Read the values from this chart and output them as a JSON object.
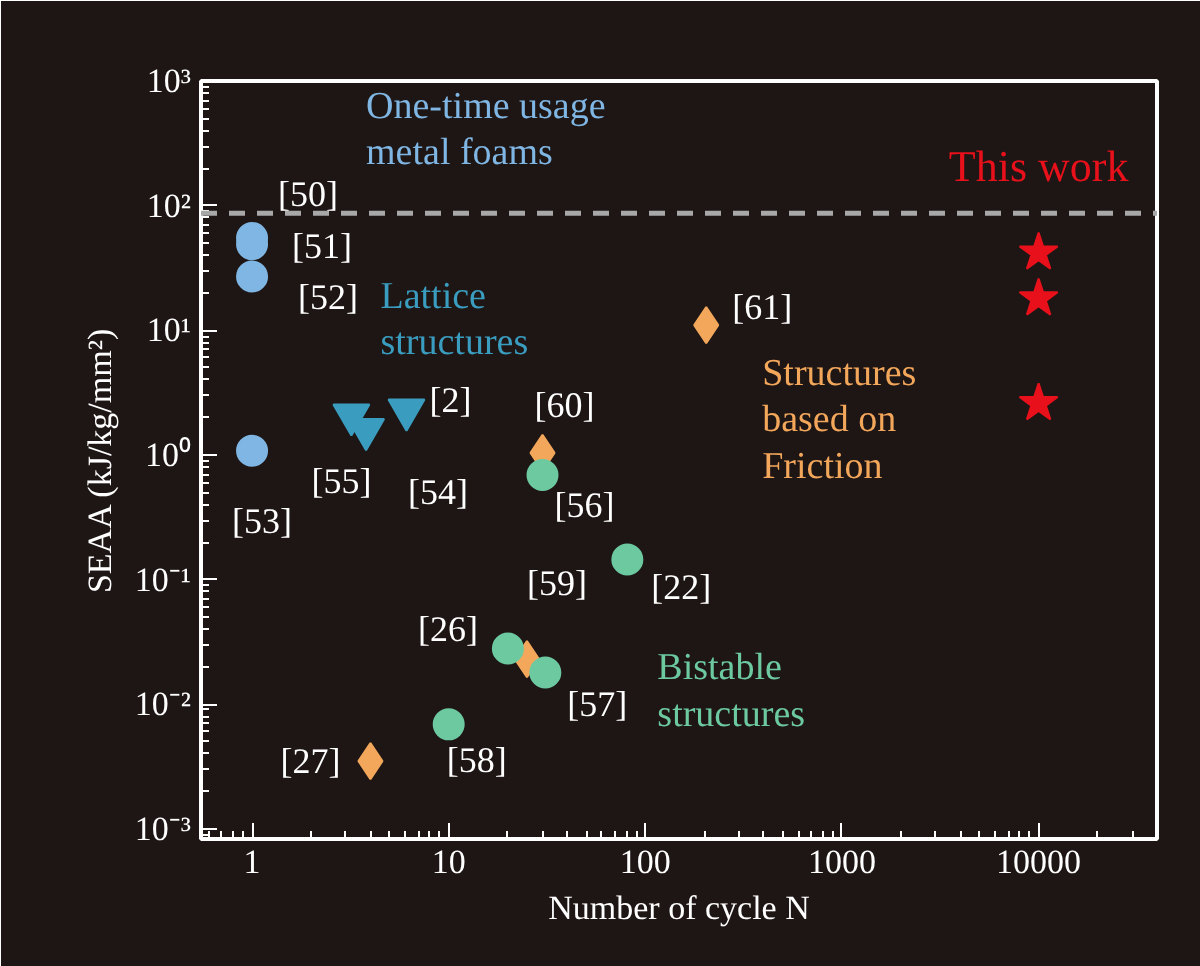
{
  "chart_data": {
    "type": "scatter",
    "xlabel": "Number of cycle N",
    "ylabel": "SEAA (kJ/kg/mm²)",
    "log": "xy",
    "xlim": [
      0.55,
      40000
    ],
    "ylim": [
      0.00083,
      1000
    ],
    "xticks": [
      1,
      10,
      100,
      1000,
      10000
    ],
    "yticks": [
      {
        "value": 0.001,
        "label": "10⁻³"
      },
      {
        "value": 0.01,
        "label": "10⁻²"
      },
      {
        "value": 0.1,
        "label": "10⁻¹"
      },
      {
        "value": 1,
        "label": "10⁰"
      },
      {
        "value": 10,
        "label": "10¹"
      },
      {
        "value": 100,
        "label": "10²"
      },
      {
        "value": 1000,
        "label": "10³"
      }
    ],
    "grid": false,
    "series": [
      {
        "name": "One-time usage\nmetal foams",
        "color": "#7fb6e3",
        "marker": "circle",
        "x": [
          1,
          1,
          1,
          1
        ],
        "values": [
          55,
          49,
          27,
          1.08
        ]
      },
      {
        "name": "Lattice\nstructures",
        "color": "#3a9dc0",
        "marker": "triangle",
        "x": [
          3.2,
          3.8,
          6.1
        ],
        "values": [
          2.1,
          1.6,
          2.3
        ]
      },
      {
        "name": "Structures\nbased on\nFriction",
        "color": "#f3a75b",
        "marker": "diamond",
        "x": [
          30,
          25,
          4,
          204
        ],
        "values": [
          1.04,
          0.023,
          0.0035,
          11
        ]
      },
      {
        "name": "Bistable\nstructures",
        "color": "#6cc9a0",
        "marker": "circle",
        "x": [
          30,
          81,
          20,
          31,
          10
        ],
        "values": [
          0.69,
          0.145,
          0.028,
          0.018,
          0.0069
        ]
      },
      {
        "name": "This work",
        "color": "#e8101a",
        "marker": "star",
        "x": [
          10000,
          10000,
          10000
        ],
        "values": [
          42,
          18,
          2.6
        ]
      }
    ],
    "ref_lines": [
      {
        "axis": "y",
        "value": 87,
        "color": "#a8a8a8",
        "line_style": "dashed"
      }
    ],
    "annotations": [
      {
        "text": "[50]",
        "x": 1,
        "y": 55
      },
      {
        "text": "[51]",
        "x": 1,
        "y": 49
      },
      {
        "text": "[52]",
        "x": 1,
        "y": 27
      },
      {
        "text": "[53]",
        "x": 1,
        "y": 1.08
      },
      {
        "text": "[55]",
        "x": 3.2,
        "y": 2.1
      },
      {
        "text": "[54]",
        "x": 3.8,
        "y": 1.6
      },
      {
        "text": "[2]",
        "x": 6.1,
        "y": 2.3
      },
      {
        "text": "[60]",
        "x": 30,
        "y": 1.04
      },
      {
        "text": "[59]",
        "x": 25,
        "y": 0.023
      },
      {
        "text": "[27]",
        "x": 4,
        "y": 0.0035
      },
      {
        "text": "[61]",
        "x": 204,
        "y": 11
      },
      {
        "text": "[56]",
        "x": 30,
        "y": 0.69
      },
      {
        "text": "[22]",
        "x": 81,
        "y": 0.145
      },
      {
        "text": "[26]",
        "x": 20,
        "y": 0.028
      },
      {
        "text": "[57]",
        "x": 31,
        "y": 0.018
      },
      {
        "text": "[58]",
        "x": 10,
        "y": 0.0069
      }
    ]
  }
}
